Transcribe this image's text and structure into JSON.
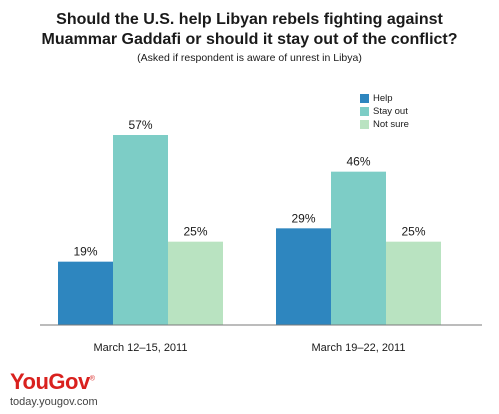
{
  "title_line1": "Should the U.S. help Libyan rebels fighting against",
  "title_line2": "Muammar Gaddafi or should it stay out of the conflict?",
  "subtitle": "(Asked if respondent is aware of unrest in Libya)",
  "brand": {
    "you": "You",
    "gov": "Gov",
    "mark": "®",
    "url": "today.yougov.com"
  },
  "colors": {
    "help": "#2e86bf",
    "stay_out": "#7dcdc6",
    "not_sure": "#b9e3c1",
    "axis": "#7a7a7a"
  },
  "chart_data": {
    "type": "bar",
    "categories": [
      "March 12–15, 2011",
      "March 19–22, 2011"
    ],
    "series": [
      {
        "name": "Help",
        "values": [
          19,
          29
        ]
      },
      {
        "name": "Stay out",
        "values": [
          57,
          46
        ]
      },
      {
        "name": "Not sure",
        "values": [
          25,
          25
        ]
      }
    ],
    "value_suffix": "%",
    "ylim": [
      0,
      60
    ],
    "legend_position": "top-right",
    "grid": false
  }
}
